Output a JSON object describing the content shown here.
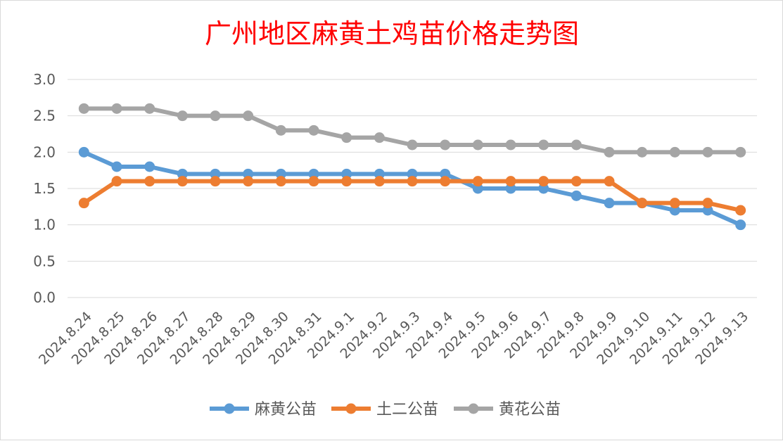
{
  "chart_data": {
    "type": "line",
    "title": "广州地区麻黄土鸡苗价格走势图",
    "xlabel": "",
    "ylabel": "",
    "ylim": [
      0,
      3
    ],
    "yticks": [
      "0.0",
      "0.5",
      "1.0",
      "1.5",
      "2.0",
      "2.5",
      "3.0"
    ],
    "grid": true,
    "legend_position": "bottom",
    "categories": [
      "2024.8.24",
      "2024.8.25",
      "2024.8.26",
      "2024.8.27",
      "2024.8.28",
      "2024.8.29",
      "2024.8.30",
      "2024.8.31",
      "2024.9.1",
      "2024.9.2",
      "2024.9.3",
      "2024.9.4",
      "2024.9.5",
      "2024.9.6",
      "2024.9.7",
      "2024.9.8",
      "2024.9.9",
      "2024.9.10",
      "2024.9.11",
      "2024.9.12",
      "2024.9.13"
    ],
    "series": [
      {
        "name": "麻黄公苗",
        "color": "#5b9bd5",
        "values": [
          2.0,
          1.8,
          1.8,
          1.7,
          1.7,
          1.7,
          1.7,
          1.7,
          1.7,
          1.7,
          1.7,
          1.7,
          1.5,
          1.5,
          1.5,
          1.4,
          1.3,
          1.3,
          1.2,
          1.2,
          1.0
        ]
      },
      {
        "name": "土二公苗",
        "color": "#ed7d31",
        "values": [
          1.3,
          1.6,
          1.6,
          1.6,
          1.6,
          1.6,
          1.6,
          1.6,
          1.6,
          1.6,
          1.6,
          1.6,
          1.6,
          1.6,
          1.6,
          1.6,
          1.6,
          1.3,
          1.3,
          1.3,
          1.2
        ]
      },
      {
        "name": "黄花公苗",
        "color": "#a5a5a5",
        "values": [
          2.6,
          2.6,
          2.6,
          2.5,
          2.5,
          2.5,
          2.3,
          2.3,
          2.2,
          2.2,
          2.1,
          2.1,
          2.1,
          2.1,
          2.1,
          2.1,
          2.0,
          2.0,
          2.0,
          2.0,
          2.0
        ]
      }
    ]
  }
}
